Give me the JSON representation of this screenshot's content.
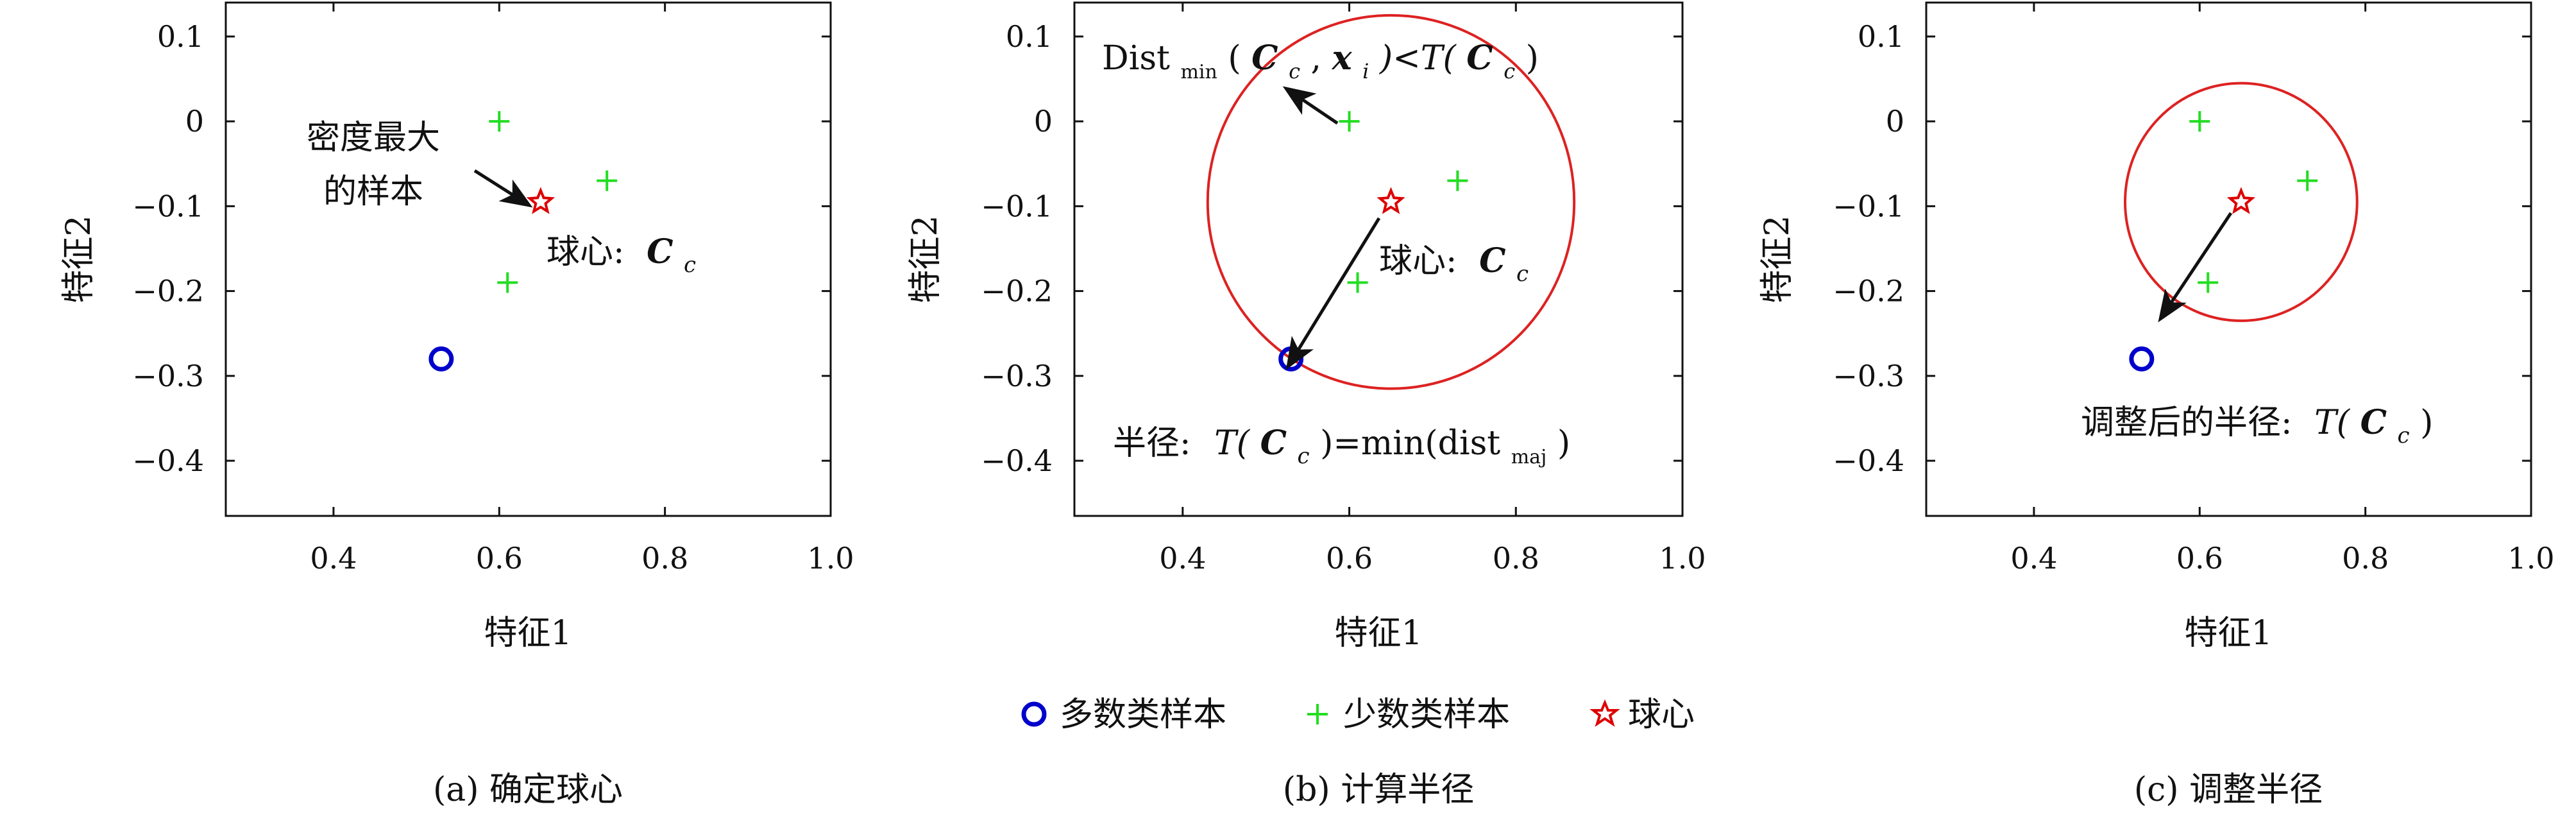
{
  "chart_data": [
    {
      "type": "scatter",
      "panel": "a",
      "xlabel": "特征1",
      "ylabel": "特征2",
      "xlim": [
        0.27,
        1.0
      ],
      "ylim": [
        -0.465,
        0.14
      ],
      "xticks": [
        0.4,
        0.6,
        0.8,
        1.0
      ],
      "xtick_labels": [
        "0.4",
        "0.6",
        "0.8",
        "1.0"
      ],
      "yticks": [
        0.1,
        0,
        -0.1,
        -0.2,
        -0.3,
        -0.4
      ],
      "ytick_labels": [
        "0.1",
        "0",
        "−0.1",
        "−0.2",
        "−0.3",
        "−0.4"
      ],
      "series": [
        {
          "name": "多数类样本",
          "marker": "circle",
          "color": "#0000cc",
          "points": [
            [
              0.53,
              -0.28
            ]
          ]
        },
        {
          "name": "少数类样本",
          "marker": "plus",
          "color": "#22dd22",
          "points": [
            [
              0.6,
              0.0
            ],
            [
              0.73,
              -0.07
            ],
            [
              0.61,
              -0.19
            ]
          ]
        },
        {
          "name": "球心",
          "marker": "star",
          "color": "#dd0000",
          "points": [
            [
              0.65,
              -0.095
            ]
          ]
        }
      ],
      "annotations": {
        "density_line1": "密度最大",
        "density_line2": "的样本",
        "center_prefix": "球心:",
        "center_symbol": "C",
        "center_sub": "c"
      },
      "caption": "(a) 确定球心"
    },
    {
      "type": "scatter",
      "panel": "b",
      "xlabel": "特征1",
      "ylabel": "特征2",
      "xlim": [
        0.27,
        1.0
      ],
      "ylim": [
        -0.465,
        0.14
      ],
      "xticks": [
        0.4,
        0.6,
        0.8,
        1.0
      ],
      "xtick_labels": [
        "0.4",
        "0.6",
        "0.8",
        "1.0"
      ],
      "yticks": [
        0.1,
        0,
        -0.1,
        -0.2,
        -0.3,
        -0.4
      ],
      "ytick_labels": [
        "0.1",
        "0",
        "−0.1",
        "−0.2",
        "−0.3",
        "−0.4"
      ],
      "series": [
        {
          "name": "多数类样本",
          "marker": "circle",
          "color": "#0000cc",
          "points": [
            [
              0.53,
              -0.28
            ]
          ]
        },
        {
          "name": "少数类样本",
          "marker": "plus",
          "color": "#22dd22",
          "points": [
            [
              0.6,
              0.0
            ],
            [
              0.73,
              -0.07
            ],
            [
              0.61,
              -0.19
            ]
          ]
        },
        {
          "name": "球心",
          "marker": "star",
          "color": "#dd0000",
          "points": [
            [
              0.65,
              -0.095
            ]
          ]
        }
      ],
      "circle": {
        "center": [
          0.65,
          -0.095
        ],
        "radius": 0.22,
        "color": "#dd2222"
      },
      "annotations": {
        "dist_main": "Dist",
        "dist_sub": "min",
        "dist_expr_open": " (",
        "dist_C": "C",
        "dist_c_sub": "c",
        "dist_comma": ", ",
        "dist_x": "x",
        "dist_i_sub": "i",
        "dist_lt": ")<T(",
        "dist_C2": "C",
        "dist_c2_sub": "c",
        "dist_close": ")",
        "center_prefix": "球心:",
        "center_symbol": "C",
        "center_sub": "c",
        "radius_prefix": "半径:",
        "radius_T": "T(",
        "radius_C": "C",
        "radius_c_sub": "c",
        "radius_mid": ")=min(dist",
        "radius_sub": "maj",
        "radius_close": ")"
      },
      "caption": "(b) 计算半径"
    },
    {
      "type": "scatter",
      "panel": "c",
      "xlabel": "特征1",
      "ylabel": "特征2",
      "xlim": [
        0.27,
        1.0
      ],
      "ylim": [
        -0.465,
        0.14
      ],
      "xticks": [
        0.4,
        0.6,
        0.8,
        1.0
      ],
      "xtick_labels": [
        "0.4",
        "0.6",
        "0.8",
        "1.0"
      ],
      "yticks": [
        0.1,
        0,
        -0.1,
        -0.2,
        -0.3,
        -0.4
      ],
      "ytick_labels": [
        "0.1",
        "0",
        "−0.1",
        "−0.2",
        "−0.3",
        "−0.4"
      ],
      "series": [
        {
          "name": "多数类样本",
          "marker": "circle",
          "color": "#0000cc",
          "points": [
            [
              0.53,
              -0.28
            ]
          ]
        },
        {
          "name": "少数类样本",
          "marker": "plus",
          "color": "#22dd22",
          "points": [
            [
              0.6,
              0.0
            ],
            [
              0.73,
              -0.07
            ],
            [
              0.61,
              -0.19
            ]
          ]
        },
        {
          "name": "球心",
          "marker": "star",
          "color": "#dd0000",
          "points": [
            [
              0.65,
              -0.095
            ]
          ]
        }
      ],
      "circle": {
        "center": [
          0.65,
          -0.095
        ],
        "radius": 0.14,
        "color": "#dd2222"
      },
      "annotations": {
        "adjusted_prefix": "调整后的半径:",
        "adjusted_T": "T(",
        "adjusted_C": "C",
        "adjusted_c_sub": "c",
        "adjusted_close": ")"
      },
      "caption": "(c) 调整半径"
    }
  ],
  "legend": {
    "placement": "bottom-center",
    "items": [
      {
        "label": "多数类样本",
        "marker": "circle",
        "color": "#0000cc"
      },
      {
        "label": "少数类样本",
        "marker": "plus",
        "color": "#22dd22"
      },
      {
        "label": "球心",
        "marker": "star",
        "color": "#dd0000"
      }
    ]
  }
}
